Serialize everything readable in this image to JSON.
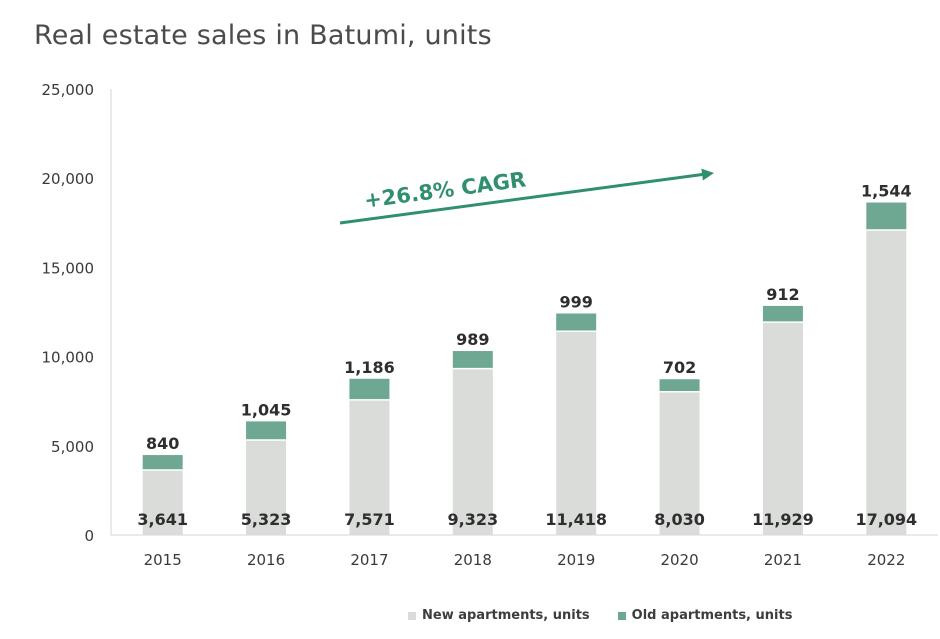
{
  "title": "Real estate sales in Batumi, units",
  "annotation": "+26.8% CAGR",
  "chart_data": {
    "type": "bar",
    "stacked": true,
    "title": "Real estate sales in Batumi, units",
    "categories": [
      "2015",
      "2016",
      "2017",
      "2018",
      "2019",
      "2020",
      "2021",
      "2022"
    ],
    "series": [
      {
        "name": "New apartments, units",
        "color": "#d9dcd9",
        "values": [
          3641,
          5323,
          7571,
          9323,
          11418,
          8030,
          11929,
          17094
        ]
      },
      {
        "name": "Old apartments, units",
        "color": "#6fa892",
        "values": [
          840,
          1045,
          1186,
          989,
          999,
          702,
          912,
          1544
        ]
      }
    ],
    "value_labels": {
      "new": [
        "3,641",
        "5,323",
        "7,571",
        "9,323",
        "11,418",
        "8,030",
        "11,929",
        "17,094"
      ],
      "old": [
        "840",
        "1,045",
        "1,186",
        "989",
        "999",
        "702",
        "912",
        "1,544"
      ]
    },
    "yticks": [
      "0",
      "5,000",
      "10,000",
      "15,000",
      "20,000",
      "25,000"
    ],
    "ylim": [
      0,
      25000
    ],
    "grid": false,
    "legend_position": "bottom"
  },
  "colors": {
    "new": "#d9dcd9",
    "old": "#6fa892",
    "arrow": "#2f8f6e",
    "text": "#3a3a3a"
  }
}
